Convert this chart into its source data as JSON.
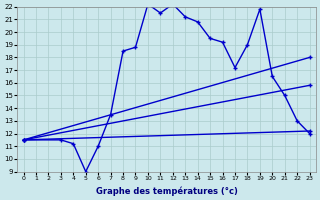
{
  "xlabel": "Graphe des températures (°c)",
  "bg_color": "#cce8ec",
  "grid_color": "#aacccc",
  "line_color": "#0000cc",
  "xmin": 0,
  "xmax": 23,
  "ymin": 9,
  "ymax": 22,
  "xticks": [
    0,
    1,
    2,
    3,
    4,
    5,
    6,
    7,
    8,
    9,
    10,
    11,
    12,
    13,
    14,
    15,
    16,
    17,
    18,
    19,
    20,
    21,
    22,
    23
  ],
  "yticks": [
    9,
    10,
    11,
    12,
    13,
    14,
    15,
    16,
    17,
    18,
    19,
    20,
    21,
    22
  ],
  "line1_x": [
    0,
    23
  ],
  "line1_y": [
    11.5,
    12.2
  ],
  "line2_x": [
    0,
    23
  ],
  "line2_y": [
    11.5,
    18.0
  ],
  "line3_x": [
    0,
    23
  ],
  "line3_y": [
    11.5,
    15.8
  ],
  "line4_x": [
    0,
    3,
    4,
    5,
    6,
    7,
    8,
    9,
    10,
    11,
    12,
    13,
    14,
    15,
    16,
    17,
    18,
    19,
    20,
    21,
    22,
    23
  ],
  "line4_y": [
    11.5,
    11.5,
    11.2,
    9.0,
    11.0,
    13.5,
    18.5,
    18.8,
    22.2,
    21.5,
    22.2,
    21.2,
    20.8,
    19.5,
    19.2,
    17.2,
    19.0,
    21.8,
    16.5,
    15.0,
    13.0,
    12.0
  ]
}
